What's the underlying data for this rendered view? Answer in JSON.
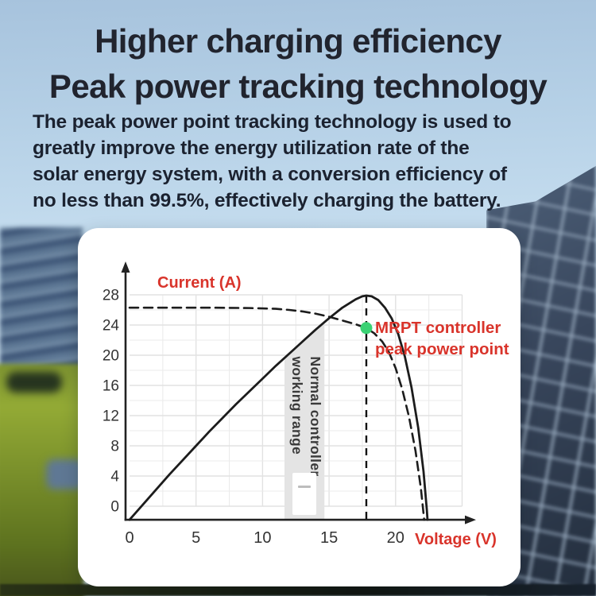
{
  "header": {
    "title_line1": "Higher charging efficiency",
    "title_line2": "Peak power tracking technology",
    "description_lines": [
      "The peak power point tracking technology is used to",
      "greatly improve the energy utilization rate of the",
      "solar energy system, with a conversion efficiency of",
      "no less than 99.5%, effectively charging the battery."
    ]
  },
  "colors": {
    "accent_red": "#d9342b",
    "dot_green": "#3ad173",
    "curve": "#1c1c1c",
    "grid": "#ebebeb",
    "grid_major": "#e2e2e2",
    "band": "#e4e4e4",
    "tick_text": "#333333",
    "title_text": "#21242e"
  },
  "chart_data": {
    "type": "line",
    "title": "",
    "xlabel": "Voltage (V)",
    "ylabel": "Current (A)",
    "xlim": [
      0,
      26
    ],
    "ylim": [
      -2,
      30
    ],
    "x_ticks": [
      0,
      5,
      10,
      15,
      20
    ],
    "y_ticks": [
      0,
      4,
      8,
      12,
      16,
      20,
      24,
      28
    ],
    "x_grid_step": 2.5,
    "x_grid_max": 25,
    "y_grid_step": 2,
    "y_grid_max": 28,
    "grid": true,
    "legend_position": "none",
    "series": [
      {
        "name": "mppt_sweep_curve",
        "style": "solid",
        "points": [
          [
            0,
            -1.8
          ],
          [
            1,
            0.2
          ],
          [
            2,
            2.2
          ],
          [
            3,
            4.2
          ],
          [
            4,
            6.1
          ],
          [
            5,
            8.0
          ],
          [
            6,
            9.9
          ],
          [
            7,
            11.7
          ],
          [
            8,
            13.5
          ],
          [
            9,
            15.2
          ],
          [
            10,
            16.9
          ],
          [
            11,
            18.6
          ],
          [
            12,
            20.2
          ],
          [
            13,
            21.8
          ],
          [
            14,
            23.4
          ],
          [
            15,
            24.9
          ],
          [
            16,
            26.3
          ],
          [
            17,
            27.4
          ],
          [
            17.5,
            27.8
          ],
          [
            17.8,
            27.9
          ],
          [
            18.2,
            27.8
          ],
          [
            18.7,
            27.3
          ],
          [
            19.2,
            26.3
          ],
          [
            19.7,
            24.9
          ],
          [
            20.2,
            22.8
          ],
          [
            20.7,
            19.8
          ],
          [
            21.2,
            15.7
          ],
          [
            21.7,
            10.4
          ],
          [
            22.1,
            4.6
          ],
          [
            22.35,
            -0.5
          ],
          [
            22.4,
            -1.8
          ]
        ]
      },
      {
        "name": "panel_iv_curve",
        "style": "dashed",
        "points": [
          [
            0,
            26.3
          ],
          [
            6,
            26.3
          ],
          [
            9,
            26.25
          ],
          [
            11,
            26.15
          ],
          [
            12,
            26.0
          ],
          [
            13,
            25.8
          ],
          [
            14,
            25.5
          ],
          [
            15,
            25.1
          ],
          [
            16,
            24.6
          ],
          [
            17,
            24.1
          ],
          [
            17.8,
            23.6
          ],
          [
            18.4,
            22.9
          ],
          [
            19,
            21.8
          ],
          [
            19.5,
            20.4
          ],
          [
            20,
            18.3
          ],
          [
            20.5,
            15.5
          ],
          [
            21,
            11.9
          ],
          [
            21.5,
            7.3
          ],
          [
            21.9,
            2.4
          ],
          [
            22.15,
            -1.8
          ]
        ]
      }
    ],
    "peak_point": {
      "x": 17.8,
      "y": 23.6,
      "label_line1": "MRPT controller",
      "label_line2": "peak power point"
    },
    "band": {
      "label_line1": "Normal controller",
      "label_line2": "working range",
      "base": -1.8,
      "top_points": [
        [
          11.65,
          19.6
        ],
        [
          12.4,
          20.9
        ],
        [
          13.2,
          22.1
        ],
        [
          14.0,
          23.3
        ],
        [
          14.65,
          24.2
        ]
      ]
    }
  }
}
